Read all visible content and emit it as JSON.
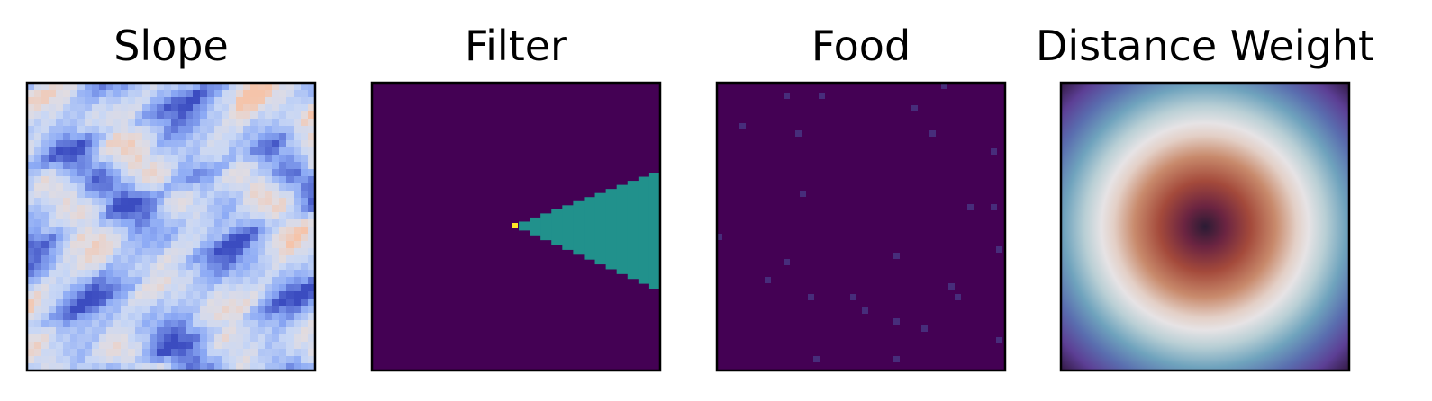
{
  "chart_data": [
    {
      "type": "heatmap",
      "title": "Slope",
      "grid": false,
      "colormap": "coolwarm",
      "description_values": "continuous terrain slope field, mostly light blue with darker blue ridges and a few light orange patches"
    },
    {
      "type": "heatmap",
      "title": "Filter",
      "grid": false,
      "colormap": "viridis",
      "levels": [
        0,
        0.5,
        1
      ],
      "background_value": 0,
      "cone_value": 0.5,
      "origin_value": 1
    },
    {
      "type": "heatmap",
      "title": "Food",
      "grid": false,
      "colormap": "viridis",
      "background_value": 0,
      "point_value": 0.1
    },
    {
      "type": "heatmap",
      "title": "Distance Weight",
      "grid": false,
      "colormap": "twilight_shifted",
      "pattern": "radial"
    }
  ],
  "colors": {
    "viridis_low": "#440154",
    "viridis_mid": "#21918c",
    "viridis_high": "#fde725",
    "food_point": "#472d7b",
    "frame": "#000000"
  }
}
